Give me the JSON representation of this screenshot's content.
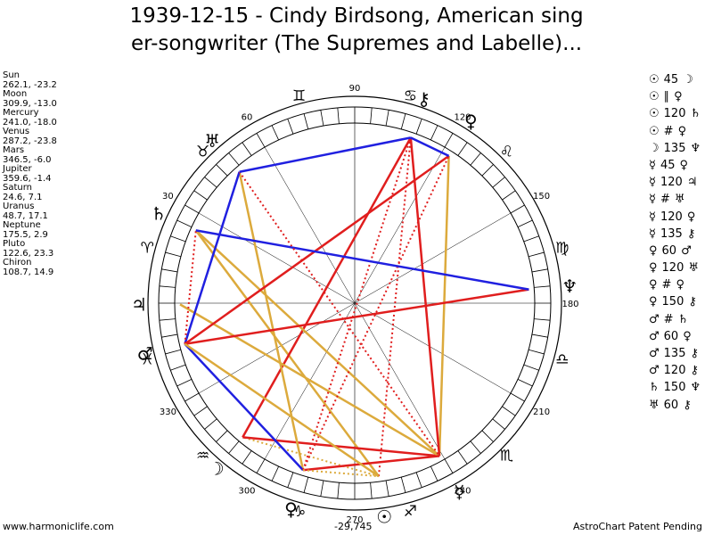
{
  "title": {
    "line1": "1939-12-15 - Cindy Birdsong, American sing",
    "line2": "er-songwriter (The Supremes and Labelle)..."
  },
  "positions": [
    {
      "name": "Sun",
      "value": "262.1, -23.2"
    },
    {
      "name": "Moon",
      "value": "309.9, -13.0"
    },
    {
      "name": "Mercury",
      "value": "241.0, -18.0"
    },
    {
      "name": "Venus",
      "value": "287.2, -23.8"
    },
    {
      "name": "Mars",
      "value": "346.5, -6.0"
    },
    {
      "name": "Jupiter",
      "value": "359.6, -1.4"
    },
    {
      "name": "Saturn",
      "value": "24.6, 7.1"
    },
    {
      "name": "Uranus",
      "value": "48.7, 17.1"
    },
    {
      "name": "Neptune",
      "value": "175.5, 2.9"
    },
    {
      "name": "Pluto",
      "value": "122.6, 23.3"
    },
    {
      "name": "Chiron",
      "value": "108.7, 14.9"
    }
  ],
  "aspects": [
    {
      "p1": "☉",
      "angle": "45",
      "p2": "☽"
    },
    {
      "p1": "☉",
      "angle": "∥",
      "p2": "♀"
    },
    {
      "p1": "☉",
      "angle": "120",
      "p2": "♄"
    },
    {
      "p1": "☉",
      "angle": "#",
      "p2": "♀"
    },
    {
      "p1": "☽",
      "angle": "135",
      "p2": "♆"
    },
    {
      "p1": "☿",
      "angle": "45",
      "p2": "♀"
    },
    {
      "p1": "☿",
      "angle": "120",
      "p2": "♃"
    },
    {
      "p1": "☿",
      "angle": "#",
      "p2": "♅"
    },
    {
      "p1": "☿",
      "angle": "120",
      "p2": "♀"
    },
    {
      "p1": "☿",
      "angle": "135",
      "p2": "⚷"
    },
    {
      "p1": "♀",
      "angle": "60",
      "p2": "♂"
    },
    {
      "p1": "♀",
      "angle": "120",
      "p2": "♅"
    },
    {
      "p1": "♀",
      "angle": "#",
      "p2": "♀"
    },
    {
      "p1": "♀",
      "angle": "150",
      "p2": "⚷"
    },
    {
      "p1": "♂",
      "angle": "#",
      "p2": "♄"
    },
    {
      "p1": "♂",
      "angle": "60",
      "p2": "♀"
    },
    {
      "p1": "♂",
      "angle": "135",
      "p2": "⚷"
    },
    {
      "p1": "♂",
      "angle": "120",
      "p2": "⚷"
    },
    {
      "p1": "♄",
      "angle": "150",
      "p2": "♆"
    },
    {
      "p1": "♅",
      "angle": "60",
      "p2": "⚷"
    }
  ],
  "wheel": {
    "degree_labels": [
      "30",
      "60",
      "90",
      "120",
      "150",
      "180",
      "210",
      "240",
      "270",
      "300",
      "330"
    ],
    "signs": [
      "♈",
      "♉",
      "♊",
      "♋",
      "♌",
      "♍",
      "♎",
      "♏",
      "♐",
      "♑",
      "♒",
      "♓"
    ],
    "planet_glyphs": [
      {
        "name": "sun",
        "glyph": "☉",
        "lon": 262.1
      },
      {
        "name": "moon",
        "glyph": "☽",
        "lon": 309.9
      },
      {
        "name": "mercury",
        "glyph": "☿",
        "lon": 241.0
      },
      {
        "name": "venus",
        "glyph": "♀",
        "lon": 287.2
      },
      {
        "name": "mars",
        "glyph": "♂",
        "lon": 346.5
      },
      {
        "name": "jupiter",
        "glyph": "♃",
        "lon": 359.6
      },
      {
        "name": "saturn",
        "glyph": "♄",
        "lon": 24.6
      },
      {
        "name": "uranus",
        "glyph": "♅",
        "lon": 48.7
      },
      {
        "name": "neptune",
        "glyph": "♆",
        "lon": 175.5
      },
      {
        "name": "pluto",
        "glyph": "♀",
        "lon": 122.6
      },
      {
        "name": "chiron",
        "glyph": "⚷",
        "lon": 108.7
      }
    ],
    "center_label": "-29,745",
    "aspect_lines": [
      {
        "from": "sun",
        "to": "saturn",
        "color": "#dcaa3c",
        "style": "solid"
      },
      {
        "from": "sun",
        "to": "moon",
        "color": "#dcaa3c",
        "style": "dotted"
      },
      {
        "from": "sun",
        "to": "chiron",
        "color": "#e01e1e",
        "style": "dotted"
      },
      {
        "from": "moon",
        "to": "mercury",
        "color": "#e01e1e",
        "style": "solid"
      },
      {
        "from": "moon",
        "to": "chiron",
        "color": "#e01e1e",
        "style": "solid"
      },
      {
        "from": "mercury",
        "to": "pluto",
        "color": "#dcaa3c",
        "style": "solid"
      },
      {
        "from": "mercury",
        "to": "jupiter",
        "color": "#dcaa3c",
        "style": "solid"
      },
      {
        "from": "mercury",
        "to": "saturn",
        "color": "#dcaa3c",
        "style": "solid"
      },
      {
        "from": "mercury",
        "to": "venus",
        "color": "#e01e1e",
        "style": "solid"
      },
      {
        "from": "mercury",
        "to": "chiron",
        "color": "#e01e1e",
        "style": "solid"
      },
      {
        "from": "venus",
        "to": "uranus",
        "color": "#dcaa3c",
        "style": "solid"
      },
      {
        "from": "venus",
        "to": "mars",
        "color": "#2020e0",
        "style": "solid"
      },
      {
        "from": "venus",
        "to": "pluto",
        "color": "#e01e1e",
        "style": "dotted"
      },
      {
        "from": "venus",
        "to": "chiron",
        "color": "#e01e1e",
        "style": "dotted"
      },
      {
        "from": "venus",
        "to": "sun",
        "color": "#dcaa3c",
        "style": "dotted"
      },
      {
        "from": "mars",
        "to": "neptune",
        "color": "#e01e1e",
        "style": "solid"
      },
      {
        "from": "mars",
        "to": "uranus",
        "color": "#2020e0",
        "style": "solid"
      },
      {
        "from": "mars",
        "to": "pluto",
        "color": "#e01e1e",
        "style": "solid"
      },
      {
        "from": "mars",
        "to": "saturn",
        "color": "#e01e1e",
        "style": "dotted"
      },
      {
        "from": "pluto",
        "to": "chiron",
        "color": "#2020e0",
        "style": "solid"
      },
      {
        "from": "saturn",
        "to": "neptune",
        "color": "#2020e0",
        "style": "solid"
      },
      {
        "from": "uranus",
        "to": "mercury",
        "color": "#e01e1e",
        "style": "dotted"
      },
      {
        "from": "chiron",
        "to": "uranus",
        "color": "#2020e0",
        "style": "solid"
      },
      {
        "from": "sun",
        "to": "mars",
        "color": "#dcaa3c",
        "style": "solid"
      }
    ]
  },
  "footer": {
    "left": "www.harmoniclife.com",
    "right": "AstroChart Patent Pending"
  }
}
